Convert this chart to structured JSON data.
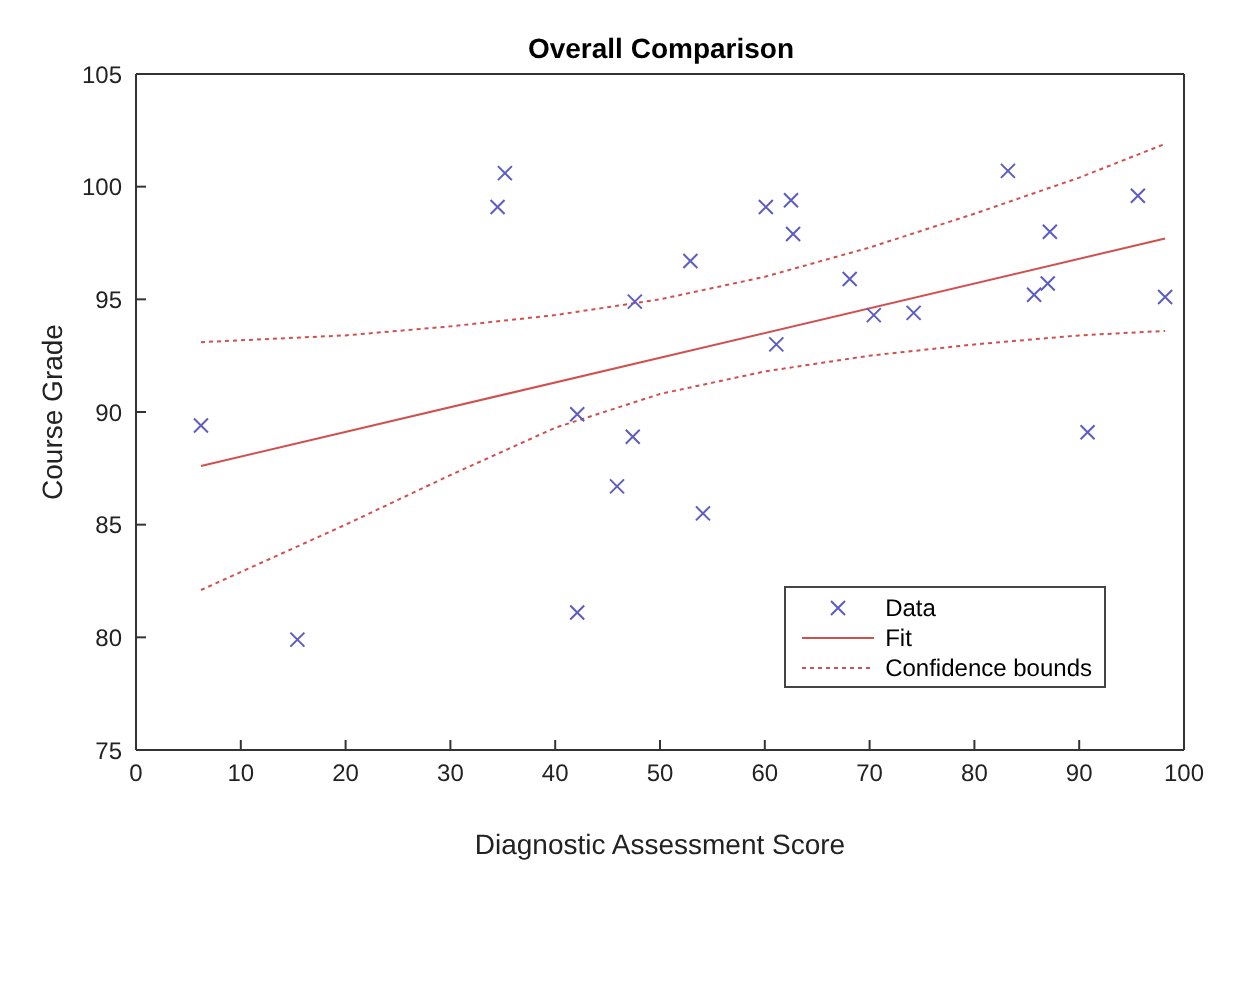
{
  "chart_data": {
    "type": "scatter",
    "title": "Overall Comparison",
    "xlabel": "Diagnostic Assessment Score",
    "ylabel": "Course Grade",
    "xlim": [
      0,
      100
    ],
    "xticks": [
      0,
      10,
      20,
      30,
      40,
      50,
      60,
      70,
      80,
      90,
      100
    ],
    "ylim": [
      75,
      105
    ],
    "yticks": [
      75,
      80,
      85,
      90,
      95,
      100,
      105
    ],
    "grid": false,
    "legend": "right",
    "marker": "cross",
    "series": [
      {
        "name": "Data",
        "color": "#5c5cc4",
        "x": [
          6.2,
          15.4,
          34.5,
          35.2,
          42.1,
          42.1,
          45.9,
          47.4,
          47.6,
          52.9,
          54.1,
          60.1,
          61.1,
          62.5,
          62.7,
          68.1,
          70.4,
          74.2,
          83.2,
          85.7,
          87.0,
          87.2,
          90.8,
          95.6,
          98.2
        ],
        "values": [
          89.4,
          79.9,
          99.1,
          100.6,
          89.9,
          81.1,
          86.7,
          88.9,
          94.9,
          96.7,
          85.5,
          99.1,
          93.0,
          99.4,
          97.9,
          95.9,
          94.3,
          94.4,
          100.7,
          95.2,
          95.7,
          98.0,
          89.1,
          99.6,
          95.1
        ]
      },
      {
        "name": "Fit",
        "type": "line",
        "color": "#d05050",
        "line_style": "solid",
        "marker": "none",
        "x": [
          6.2,
          98.2
        ],
        "values": [
          87.6,
          97.7
        ]
      },
      {
        "name": "Confidence bounds",
        "type": "line",
        "color": "#d05050",
        "line_style": "dotted",
        "marker": "none",
        "x": [
          6.2,
          20,
          30,
          40,
          50,
          60,
          70,
          80,
          90,
          98.2
        ],
        "values": [
          93.1,
          93.4,
          93.8,
          94.3,
          95.0,
          96.0,
          97.3,
          98.8,
          100.4,
          101.9
        ]
      },
      {
        "type": "line",
        "color": "#d05050",
        "line_style": "dotted",
        "marker": "none",
        "x": [
          6.2,
          20,
          30,
          40,
          50,
          60,
          70,
          80,
          90,
          98.2
        ],
        "values": [
          82.1,
          85.0,
          87.2,
          89.3,
          90.8,
          91.8,
          92.5,
          93.0,
          93.4,
          93.6
        ]
      }
    ]
  }
}
